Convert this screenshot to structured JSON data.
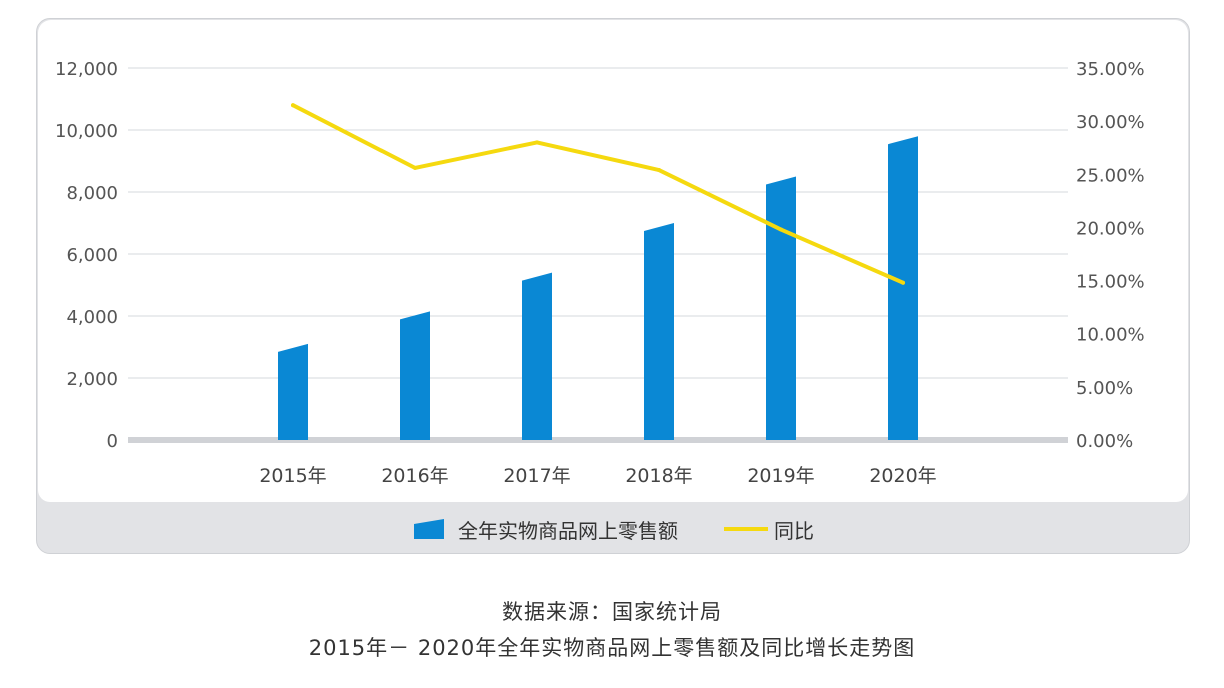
{
  "chart_data": {
    "type": "bar",
    "categories": [
      "2015年",
      "2016年",
      "2017年",
      "2018年",
      "2019年",
      "2020年"
    ],
    "series": [
      {
        "name": "全年实物商品网上零售额",
        "type": "bar",
        "axis": "left",
        "values": [
          3100,
          4150,
          5400,
          7000,
          8500,
          9800
        ]
      },
      {
        "name": "同比",
        "type": "line",
        "axis": "right",
        "values": [
          31.5,
          25.6,
          28.0,
          25.4,
          19.8,
          14.8
        ]
      }
    ],
    "y_left": {
      "ylim": [
        0,
        12000
      ],
      "ticks": [
        "0",
        "2,000",
        "4,000",
        "6,000",
        "8,000",
        "10,000",
        "12,000"
      ]
    },
    "y_right": {
      "ylim": [
        0,
        35
      ],
      "ticks": [
        "0.00%",
        "5.00%",
        "10.00%",
        "15.00%",
        "20.00%",
        "25.00%",
        "30.00%",
        "35.00%"
      ]
    },
    "grid": true,
    "legend_position": "bottom",
    "colors": {
      "bar": "#0a88d4",
      "line": "#f5d90f",
      "grid": "#d6d8dc",
      "axis_text": "#555555"
    }
  },
  "legend": {
    "bar_label": "全年实物商品网上零售额",
    "line_label": "同比"
  },
  "source_note": "数据来源：国家统计局",
  "caption": "2015年－ 2020年全年实物商品网上零售额及同比增长走势图"
}
